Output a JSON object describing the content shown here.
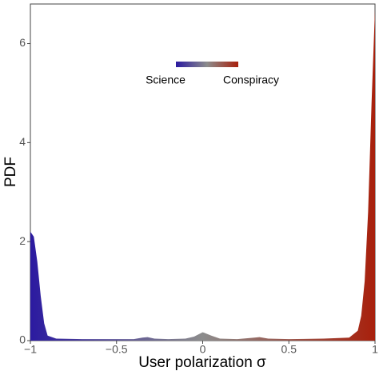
{
  "chart_data": {
    "type": "area",
    "x_label": "User polarization  σ",
    "y_label": "PDF",
    "x": [
      -1,
      -0.98,
      -0.96,
      -0.94,
      -0.92,
      -0.9,
      -0.85,
      -0.7,
      -0.5,
      -0.4,
      -0.35,
      -0.32,
      -0.28,
      -0.2,
      -0.1,
      -0.05,
      0,
      0.05,
      0.1,
      0.2,
      0.3,
      0.33,
      0.38,
      0.5,
      0.7,
      0.85,
      0.9,
      0.92,
      0.94,
      0.96,
      0.98,
      1
    ],
    "values": [
      2.2,
      2.1,
      1.6,
      0.9,
      0.35,
      0.1,
      0.04,
      0.03,
      0.03,
      0.03,
      0.06,
      0.07,
      0.04,
      0.03,
      0.04,
      0.08,
      0.17,
      0.1,
      0.04,
      0.03,
      0.06,
      0.07,
      0.04,
      0.03,
      0.04,
      0.06,
      0.2,
      0.5,
      1.2,
      2.6,
      4.8,
      6.7
    ],
    "gradient": [
      "#2b1aa0",
      "#8c8c8c",
      "#a8200c"
    ],
    "legend": {
      "low": "Science",
      "high": "Conspiracy"
    },
    "xlim": [
      -1,
      1
    ],
    "xticks": [
      {
        "value": -1,
        "label": "−1"
      },
      {
        "value": -0.5,
        "label": "−0.5"
      },
      0,
      0.5,
      1
    ],
    "ylim": [
      0,
      6.8
    ],
    "yticks": [
      0,
      2,
      4,
      6
    ],
    "grid": false
  }
}
